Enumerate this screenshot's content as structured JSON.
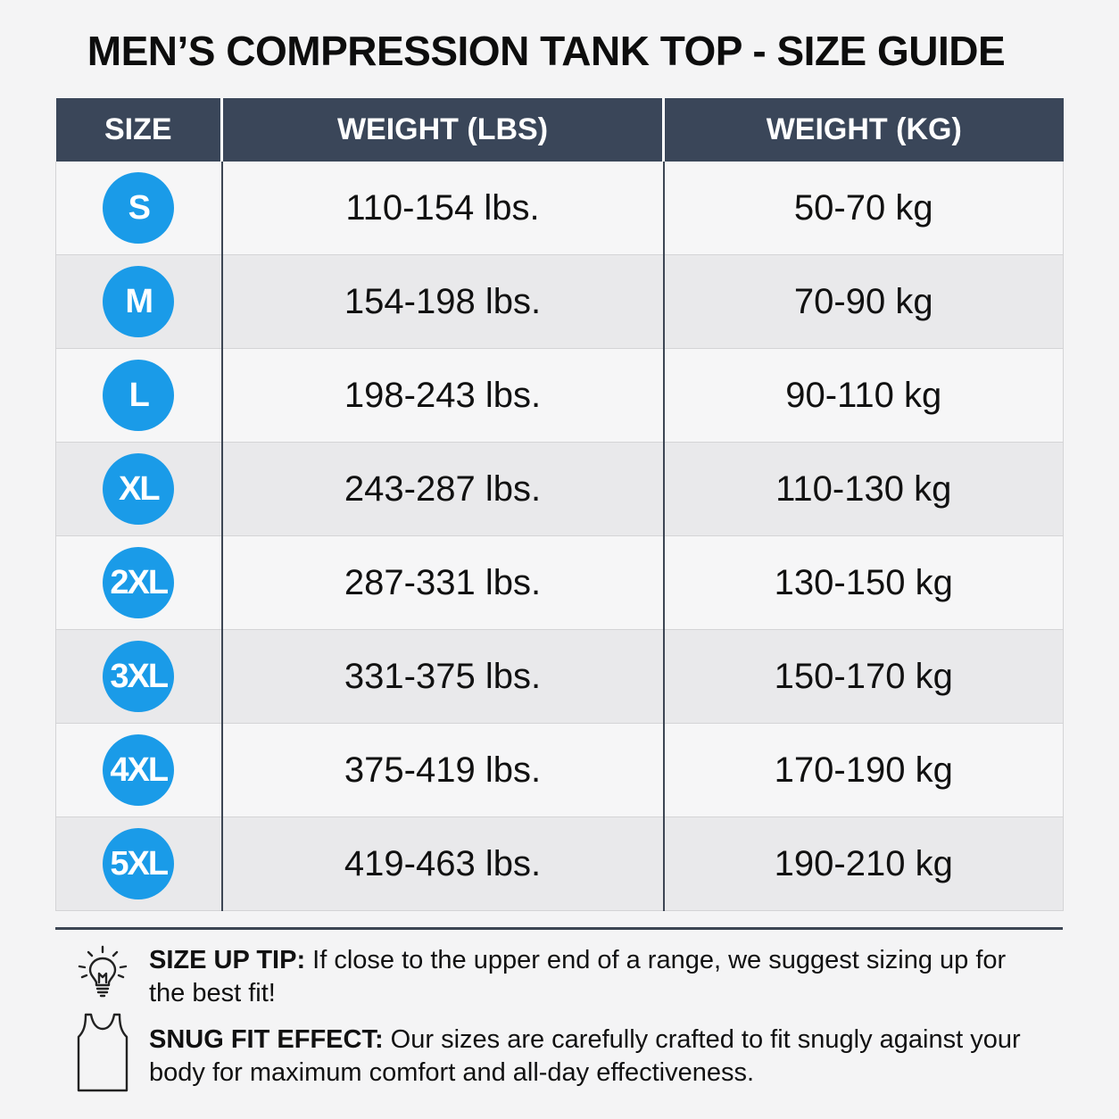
{
  "title": "MEN’S COMPRESSION TANK TOP - SIZE GUIDE",
  "headers": {
    "size": "SIZE",
    "lbs": "WEIGHT (LBS)",
    "kg": "WEIGHT (KG)"
  },
  "rows": [
    {
      "size": "S",
      "lbs": "110-154 lbs.",
      "kg": "50-70 kg"
    },
    {
      "size": "M",
      "lbs": "154-198 lbs.",
      "kg": "70-90 kg"
    },
    {
      "size": "L",
      "lbs": "198-243 lbs.",
      "kg": "90-110 kg"
    },
    {
      "size": "XL",
      "lbs": "243-287 lbs.",
      "kg": "110-130 kg"
    },
    {
      "size": "2XL",
      "lbs": "287-331 lbs.",
      "kg": "130-150 kg"
    },
    {
      "size": "3XL",
      "lbs": "331-375 lbs.",
      "kg": "150-170 kg"
    },
    {
      "size": "4XL",
      "lbs": "375-419 lbs.",
      "kg": "170-190 kg"
    },
    {
      "size": "5XL",
      "lbs": "419-463 lbs.",
      "kg": "190-210 kg"
    }
  ],
  "tips": {
    "size_up": {
      "icon": "lightbulb-icon",
      "label": "SIZE UP TIP:",
      "text": " If close to the upper end of a range, we suggest sizing up for the best fit!"
    },
    "snug_fit": {
      "icon": "tank-top-icon",
      "label": "SNUG FIT EFFECT:",
      "text": " Our sizes are carefully crafted to fit snugly against your body for maximum comfort and all-day effectiveness."
    }
  },
  "colors": {
    "header_bg": "#3a4659",
    "badge": "#1a9be8",
    "row_light": "#f6f6f7",
    "row_dark": "#e9e9eb"
  }
}
